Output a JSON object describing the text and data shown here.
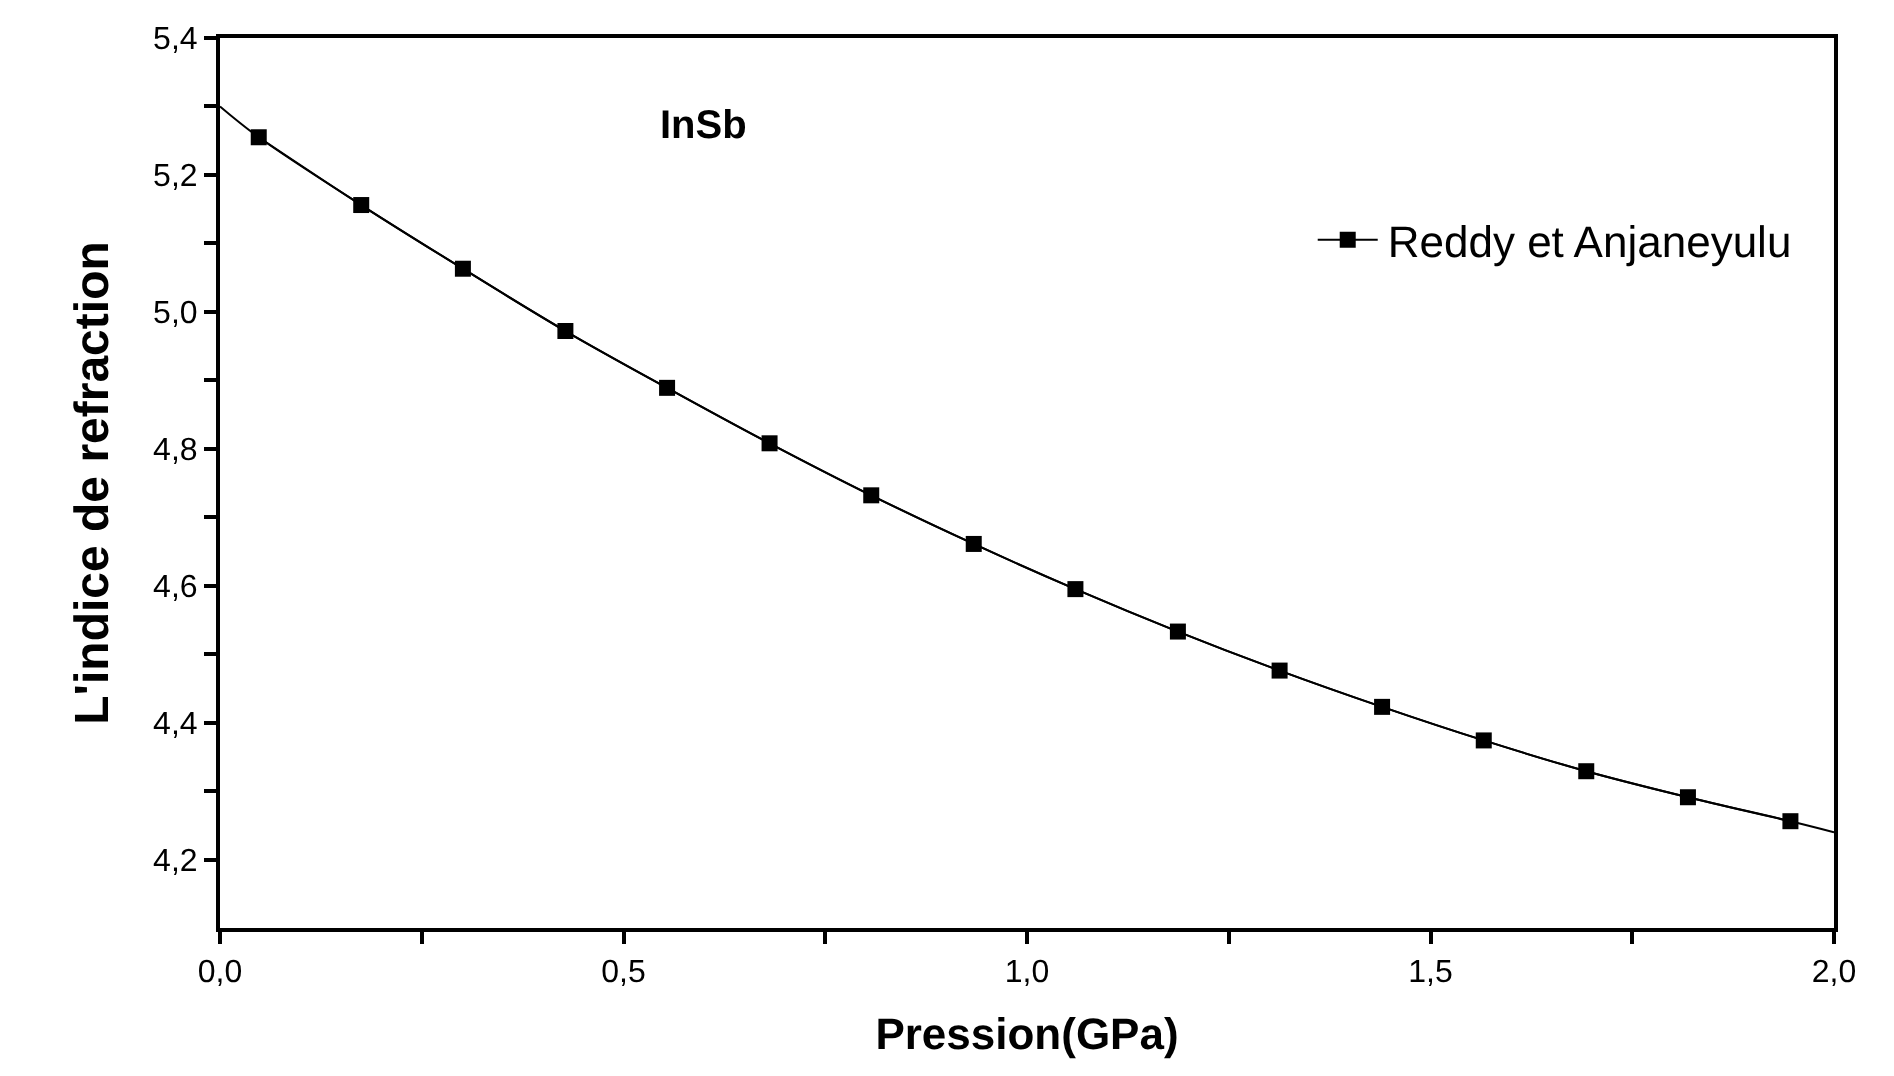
{
  "chart_data": {
    "type": "line",
    "xlabel": "Pression(GPa)",
    "ylabel": "L'indice de refraction",
    "annotations": [
      "InSb"
    ],
    "series": [
      {
        "name": "Reddy et Anjaneyulu",
        "color": "#000000",
        "marker": "square",
        "line_style": "solid",
        "x": [
          0.048,
          0.175,
          0.301,
          0.428,
          0.554,
          0.681,
          0.807,
          0.934,
          1.06,
          1.187,
          1.313,
          1.44,
          1.566,
          1.693,
          1.819,
          1.946
        ],
        "values": [
          5.255,
          5.156,
          5.063,
          4.972,
          4.889,
          4.808,
          4.732,
          4.661,
          4.595,
          4.533,
          4.476,
          4.423,
          4.374,
          4.329,
          4.291,
          4.256
        ]
      },
      {
        "color": "#000000",
        "marker": "none",
        "line_style": "solid",
        "x": [
          0.0,
          0.048,
          0.175,
          0.301,
          0.428,
          0.554,
          0.681,
          0.807,
          0.934,
          1.06,
          1.187,
          1.313,
          1.44,
          1.566,
          1.693,
          1.819,
          1.946,
          2.0
        ],
        "values": [
          5.3,
          5.255,
          5.156,
          5.063,
          4.972,
          4.889,
          4.808,
          4.732,
          4.661,
          4.595,
          4.533,
          4.476,
          4.423,
          4.374,
          4.329,
          4.291,
          4.256,
          4.24
        ]
      }
    ],
    "xlim": [
      0.0,
      2.0
    ],
    "ylim": [
      4.1,
      5.4
    ],
    "xticks": [
      {
        "value": 0,
        "label": "0,0"
      },
      {
        "value": 0.25,
        "label": null
      },
      {
        "value": 0.5,
        "label": "0,5"
      },
      {
        "value": 0.75,
        "label": null
      },
      {
        "value": 1.0,
        "label": "1,0"
      },
      {
        "value": 1.25,
        "label": null
      },
      {
        "value": 1.5,
        "label": "1,5"
      },
      {
        "value": 1.75,
        "label": null
      },
      {
        "value": 2.0,
        "label": "2,0"
      }
    ],
    "yticks": [
      {
        "value": 4.2,
        "label": "4,2"
      },
      {
        "value": 4.3,
        "label": null
      },
      {
        "value": 4.4,
        "label": "4,4"
      },
      {
        "value": 4.5,
        "label": null
      },
      {
        "value": 4.6,
        "label": "4,6"
      },
      {
        "value": 4.7,
        "label": null
      },
      {
        "value": 4.8,
        "label": "4,8"
      },
      {
        "value": 4.9,
        "label": null
      },
      {
        "value": 5.0,
        "label": "5,0"
      },
      {
        "value": 5.1,
        "label": null
      },
      {
        "value": 5.2,
        "label": "5,2"
      },
      {
        "value": 5.3,
        "label": null
      },
      {
        "value": 5.4,
        "label": "5,4"
      }
    ],
    "legend": "top right"
  }
}
